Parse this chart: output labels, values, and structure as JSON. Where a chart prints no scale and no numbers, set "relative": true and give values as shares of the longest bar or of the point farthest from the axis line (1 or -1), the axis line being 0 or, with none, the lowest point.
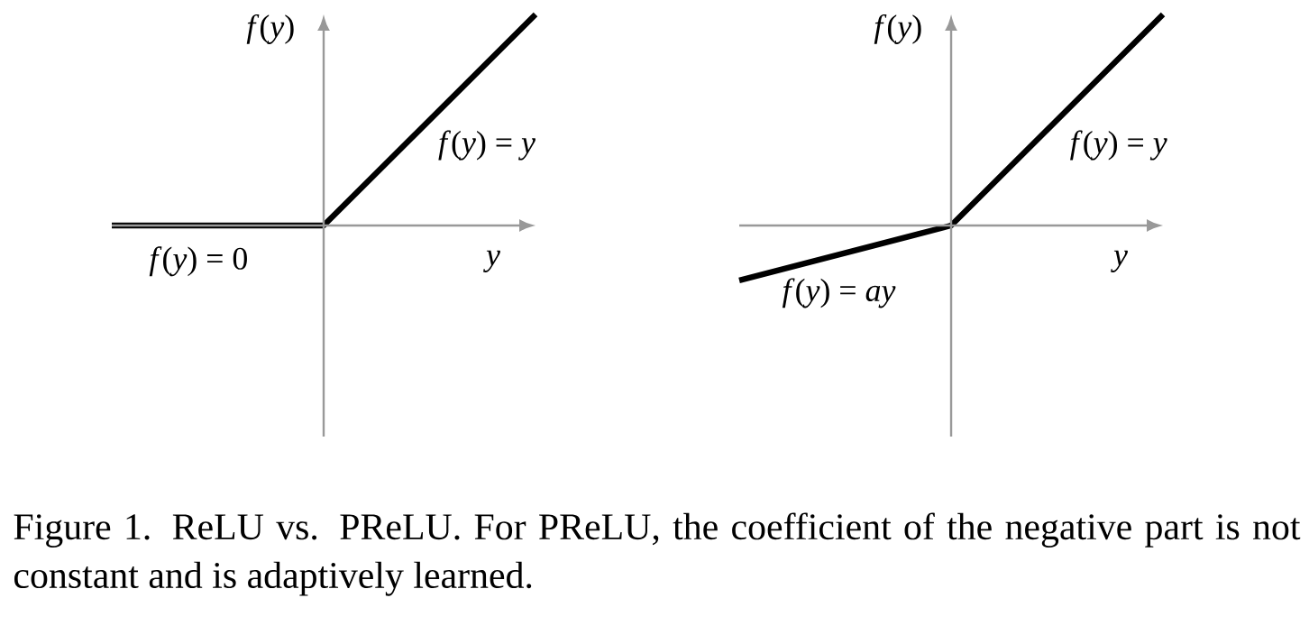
{
  "chart_data": [
    {
      "type": "line",
      "relative": true,
      "xlabel": "*y*",
      "ylabel": "*f*(*y*)",
      "categories": [
        null,
        null,
        null
      ],
      "values": [
        0,
        0,
        1
      ],
      "color": "#000000",
      "annotations": [
        "*f*(*y*) = *y*",
        "*f*(*y*) = 0"
      ]
    },
    {
      "type": "line",
      "relative": true,
      "xlabel": "*y*",
      "ylabel": "*f*(*y*)",
      "categories": [
        null,
        null,
        null
      ],
      "values": [
        -0.26,
        0,
        1
      ],
      "color": "#000000",
      "annotations": [
        "*f*(*y*) = *y*",
        "*f*(*y*) = *ay*",
        "Figure 1. ReLU vs.  PReLU. For PReLU, the coefficient of the negative part is not constant and is adaptively learned."
      ]
    }
  ]
}
